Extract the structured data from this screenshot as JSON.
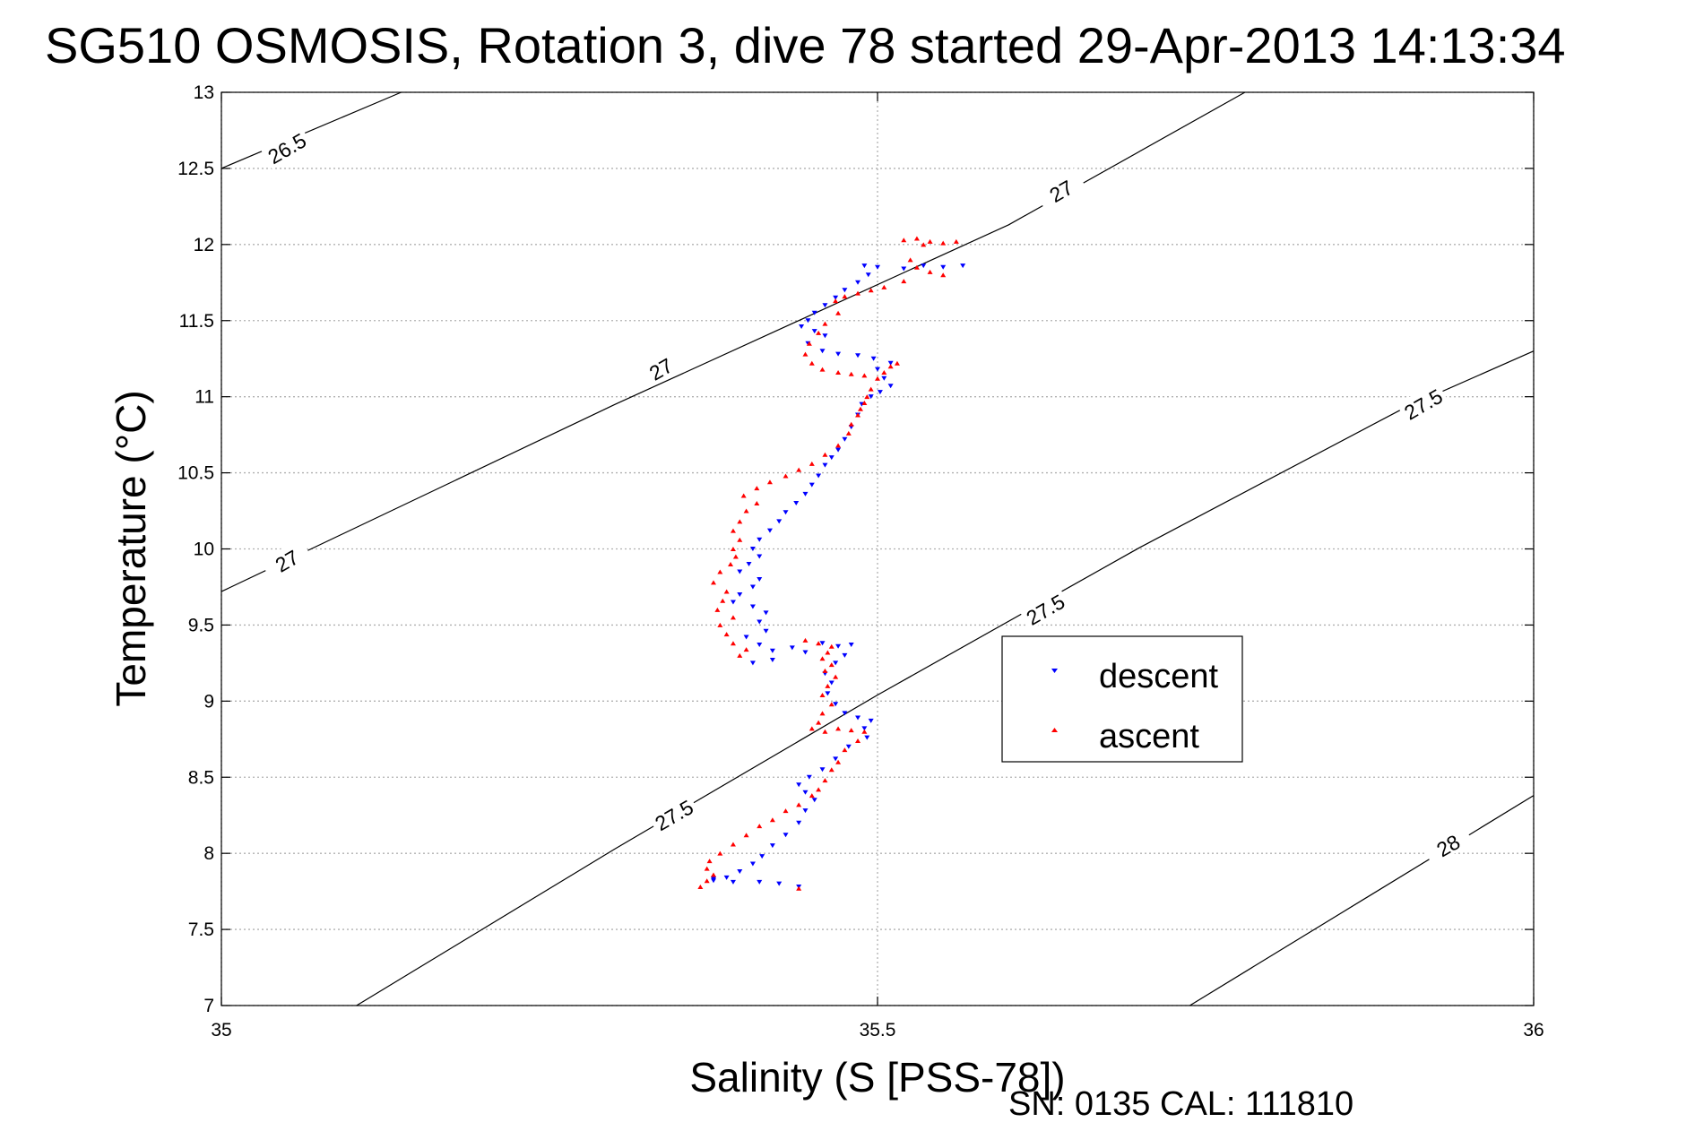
{
  "chart_data": {
    "type": "scatter",
    "title": "SG510 OSMOSIS, Rotation 3, dive 78 started 29-Apr-2013 14:13:34",
    "xlabel": "Salinity (S [PSS-78])",
    "ylabel": "Temperature (°C)",
    "xlim": [
      35,
      36
    ],
    "ylim": [
      7,
      13
    ],
    "xticks": [
      "35",
      "35.5",
      "36"
    ],
    "yticks": [
      "7",
      "7.5",
      "8",
      "8.5",
      "9",
      "9.5",
      "10",
      "10.5",
      "11",
      "11.5",
      "12",
      "12.5",
      "13"
    ],
    "grid": true,
    "legend_position": "center-right",
    "footer": "SN: 0135  CAL: 111810",
    "contours": [
      {
        "label": "26.5",
        "points": [
          [
            35.0,
            12.5
          ],
          [
            35.137,
            13.0
          ]
        ]
      },
      {
        "label": "27",
        "points": [
          [
            35.0,
            9.72
          ],
          [
            35.3,
            10.95
          ],
          [
            35.6,
            12.13
          ],
          [
            35.78,
            13.0
          ]
        ]
      },
      {
        "label": "27.5",
        "points": [
          [
            35.103,
            7.0
          ],
          [
            35.3,
            8.03
          ],
          [
            35.5,
            9.04
          ],
          [
            35.7,
            10.01
          ],
          [
            35.9,
            10.92
          ],
          [
            36.0,
            11.3
          ]
        ]
      },
      {
        "label": "28",
        "points": [
          [
            35.738,
            7.0
          ],
          [
            36.0,
            8.38
          ]
        ]
      }
    ],
    "contour_labels": [
      {
        "text": "26.5",
        "x": 35.05,
        "y": 12.63
      },
      {
        "text": "27",
        "x": 35.64,
        "y": 12.35
      },
      {
        "text": "27",
        "x": 35.335,
        "y": 11.18
      },
      {
        "text": "27",
        "x": 35.05,
        "y": 9.92
      },
      {
        "text": "27.5",
        "x": 35.916,
        "y": 10.95
      },
      {
        "text": "27.5",
        "x": 35.628,
        "y": 9.6
      },
      {
        "text": "27.5",
        "x": 35.345,
        "y": 8.25
      },
      {
        "text": "28",
        "x": 35.935,
        "y": 8.05
      }
    ],
    "series": [
      {
        "name": "descent",
        "color": "#0000ff",
        "marker": "triangle-down",
        "points": [
          [
            35.49,
            11.86
          ],
          [
            35.5,
            11.85
          ],
          [
            35.52,
            11.84
          ],
          [
            35.535,
            11.86
          ],
          [
            35.55,
            11.85
          ],
          [
            35.565,
            11.86
          ],
          [
            35.493,
            11.8
          ],
          [
            35.485,
            11.75
          ],
          [
            35.475,
            11.7
          ],
          [
            35.468,
            11.65
          ],
          [
            35.46,
            11.6
          ],
          [
            35.452,
            11.55
          ],
          [
            35.447,
            11.5
          ],
          [
            35.442,
            11.46
          ],
          [
            35.452,
            11.43
          ],
          [
            35.46,
            11.4
          ],
          [
            35.447,
            11.35
          ],
          [
            35.458,
            11.3
          ],
          [
            35.47,
            11.28
          ],
          [
            35.485,
            11.27
          ],
          [
            35.497,
            11.25
          ],
          [
            35.51,
            11.22
          ],
          [
            35.5,
            11.18
          ],
          [
            35.505,
            11.12
          ],
          [
            35.51,
            11.07
          ],
          [
            35.502,
            11.03
          ],
          [
            35.495,
            11.0
          ],
          [
            35.488,
            10.95
          ],
          [
            35.485,
            10.88
          ],
          [
            35.48,
            10.8
          ],
          [
            35.475,
            10.72
          ],
          [
            35.47,
            10.65
          ],
          [
            35.465,
            10.6
          ],
          [
            35.46,
            10.55
          ],
          [
            35.455,
            10.48
          ],
          [
            35.45,
            10.42
          ],
          [
            35.445,
            10.36
          ],
          [
            35.438,
            10.3
          ],
          [
            35.43,
            10.24
          ],
          [
            35.425,
            10.18
          ],
          [
            35.418,
            10.12
          ],
          [
            35.41,
            10.06
          ],
          [
            35.405,
            10.0
          ],
          [
            35.41,
            9.95
          ],
          [
            35.402,
            9.9
          ],
          [
            35.395,
            9.85
          ],
          [
            35.41,
            9.8
          ],
          [
            35.405,
            9.75
          ],
          [
            35.395,
            9.7
          ],
          [
            35.39,
            9.65
          ],
          [
            35.405,
            9.62
          ],
          [
            35.415,
            9.58
          ],
          [
            35.41,
            9.52
          ],
          [
            35.415,
            9.46
          ],
          [
            35.4,
            9.42
          ],
          [
            35.41,
            9.37
          ],
          [
            35.42,
            9.33
          ],
          [
            35.435,
            9.35
          ],
          [
            35.445,
            9.32
          ],
          [
            35.42,
            9.27
          ],
          [
            35.405,
            9.25
          ],
          [
            35.458,
            9.38
          ],
          [
            35.47,
            9.36
          ],
          [
            35.48,
            9.37
          ],
          [
            35.475,
            9.3
          ],
          [
            35.468,
            9.25
          ],
          [
            35.46,
            9.18
          ],
          [
            35.465,
            9.12
          ],
          [
            35.462,
            9.05
          ],
          [
            35.468,
            8.98
          ],
          [
            35.475,
            8.92
          ],
          [
            35.485,
            8.89
          ],
          [
            35.495,
            8.87
          ],
          [
            35.49,
            8.82
          ],
          [
            35.492,
            8.76
          ],
          [
            35.478,
            8.7
          ],
          [
            35.468,
            8.62
          ],
          [
            35.458,
            8.55
          ],
          [
            35.448,
            8.5
          ],
          [
            35.44,
            8.45
          ],
          [
            35.445,
            8.4
          ],
          [
            35.452,
            8.35
          ],
          [
            35.445,
            8.28
          ],
          [
            35.44,
            8.2
          ],
          [
            35.43,
            8.12
          ],
          [
            35.42,
            8.05
          ],
          [
            35.412,
            7.98
          ],
          [
            35.405,
            7.93
          ],
          [
            35.395,
            7.88
          ],
          [
            35.385,
            7.84
          ],
          [
            35.375,
            7.83
          ],
          [
            35.39,
            7.81
          ],
          [
            35.41,
            7.81
          ],
          [
            35.425,
            7.8
          ],
          [
            35.44,
            7.78
          ],
          [
            35.375,
            7.82
          ]
        ]
      },
      {
        "name": "ascent",
        "color": "#ff0000",
        "marker": "triangle-up",
        "points": [
          [
            35.52,
            12.03
          ],
          [
            35.53,
            12.04
          ],
          [
            35.54,
            12.02
          ],
          [
            35.55,
            12.01
          ],
          [
            35.56,
            12.02
          ],
          [
            35.535,
            12.0
          ],
          [
            35.525,
            11.9
          ],
          [
            35.53,
            11.85
          ],
          [
            35.54,
            11.82
          ],
          [
            35.55,
            11.8
          ],
          [
            35.52,
            11.76
          ],
          [
            35.505,
            11.72
          ],
          [
            35.495,
            11.7
          ],
          [
            35.485,
            11.68
          ],
          [
            35.475,
            11.66
          ],
          [
            35.468,
            11.63
          ],
          [
            35.47,
            11.55
          ],
          [
            35.46,
            11.48
          ],
          [
            35.455,
            11.42
          ],
          [
            35.448,
            11.35
          ],
          [
            35.445,
            11.28
          ],
          [
            35.45,
            11.22
          ],
          [
            35.458,
            11.18
          ],
          [
            35.47,
            11.16
          ],
          [
            35.48,
            11.15
          ],
          [
            35.49,
            11.14
          ],
          [
            35.5,
            11.12
          ],
          [
            35.505,
            11.16
          ],
          [
            35.51,
            11.2
          ],
          [
            35.515,
            11.22
          ],
          [
            35.495,
            11.05
          ],
          [
            35.492,
            11.0
          ],
          [
            35.49,
            10.96
          ],
          [
            35.487,
            10.92
          ],
          [
            35.485,
            10.88
          ],
          [
            35.48,
            10.82
          ],
          [
            35.478,
            10.76
          ],
          [
            35.47,
            10.68
          ],
          [
            35.46,
            10.62
          ],
          [
            35.45,
            10.56
          ],
          [
            35.44,
            10.52
          ],
          [
            35.43,
            10.48
          ],
          [
            35.418,
            10.44
          ],
          [
            35.408,
            10.4
          ],
          [
            35.398,
            10.35
          ],
          [
            35.408,
            10.3
          ],
          [
            35.4,
            10.25
          ],
          [
            35.395,
            10.18
          ],
          [
            35.39,
            10.12
          ],
          [
            35.395,
            10.06
          ],
          [
            35.39,
            10.0
          ],
          [
            35.392,
            9.95
          ],
          [
            35.388,
            9.9
          ],
          [
            35.38,
            9.85
          ],
          [
            35.375,
            9.78
          ],
          [
            35.385,
            9.72
          ],
          [
            35.382,
            9.66
          ],
          [
            35.378,
            9.6
          ],
          [
            35.39,
            9.55
          ],
          [
            35.38,
            9.5
          ],
          [
            35.385,
            9.44
          ],
          [
            35.39,
            9.38
          ],
          [
            35.4,
            9.34
          ],
          [
            35.395,
            9.3
          ],
          [
            35.445,
            9.4
          ],
          [
            35.455,
            9.38
          ],
          [
            35.465,
            9.36
          ],
          [
            35.462,
            9.32
          ],
          [
            35.458,
            9.28
          ],
          [
            35.465,
            9.24
          ],
          [
            35.46,
            9.2
          ],
          [
            35.468,
            9.16
          ],
          [
            35.462,
            9.1
          ],
          [
            35.458,
            9.04
          ],
          [
            35.465,
            8.98
          ],
          [
            35.458,
            8.92
          ],
          [
            35.455,
            8.86
          ],
          [
            35.45,
            8.82
          ],
          [
            35.46,
            8.8
          ],
          [
            35.47,
            8.82
          ],
          [
            35.48,
            8.81
          ],
          [
            35.49,
            8.8
          ],
          [
            35.485,
            8.74
          ],
          [
            35.475,
            8.68
          ],
          [
            35.47,
            8.6
          ],
          [
            35.465,
            8.55
          ],
          [
            35.46,
            8.48
          ],
          [
            35.455,
            8.42
          ],
          [
            35.45,
            8.38
          ],
          [
            35.44,
            8.32
          ],
          [
            35.43,
            8.28
          ],
          [
            35.42,
            8.22
          ],
          [
            35.41,
            8.18
          ],
          [
            35.4,
            8.12
          ],
          [
            35.39,
            8.06
          ],
          [
            35.38,
            8.0
          ],
          [
            35.372,
            7.95
          ],
          [
            35.37,
            7.9
          ],
          [
            35.375,
            7.86
          ],
          [
            35.37,
            7.82
          ],
          [
            35.365,
            7.78
          ],
          [
            35.44,
            7.77
          ]
        ]
      }
    ]
  }
}
